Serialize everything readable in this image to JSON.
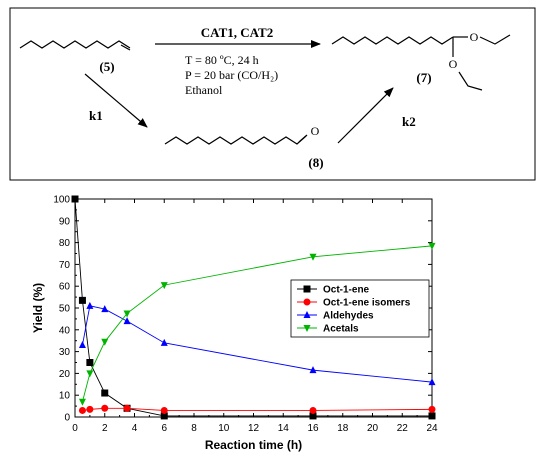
{
  "scheme": {
    "catalysts": "CAT1, CAT2",
    "conditions": [
      "T = 80 ºC, 24 h",
      "P = 20 bar (CO/H₂)",
      "Ethanol"
    ],
    "compounds": [
      {
        "id": "reactant",
        "label": "(5)"
      },
      {
        "id": "product",
        "label": "(7)"
      },
      {
        "id": "intermediate",
        "label": "(8)"
      }
    ],
    "atom_label": "O",
    "rate_constants": {
      "first": "k1",
      "second": "k2"
    }
  },
  "chart_data": {
    "type": "line",
    "title": "",
    "xlabel": "Reaction time (h)",
    "ylabel": "Yield (%)",
    "xlim": [
      0,
      24
    ],
    "ylim": [
      0,
      100
    ],
    "xticks": [
      0,
      2,
      4,
      6,
      8,
      10,
      12,
      14,
      16,
      18,
      20,
      22,
      24
    ],
    "yticks": [
      0,
      10,
      20,
      30,
      40,
      50,
      60,
      70,
      80,
      90,
      100
    ],
    "grid": false,
    "legend_position": "middle-right",
    "series": [
      {
        "name": "Oct-1-ene",
        "color": "#000000",
        "marker": "square",
        "x": [
          0,
          0.5,
          1,
          2,
          3.5,
          6,
          16,
          24
        ],
        "y": [
          100,
          53.5,
          25,
          11,
          4,
          0.5,
          0.5,
          0.5
        ]
      },
      {
        "name": "Oct-1-ene isomers",
        "color": "#ff0000",
        "marker": "circle",
        "x": [
          0.5,
          1,
          2,
          3.5,
          6,
          16,
          24
        ],
        "y": [
          3,
          3.5,
          4,
          4,
          3,
          3,
          3.5
        ]
      },
      {
        "name": "Aldehydes",
        "color": "#0000ff",
        "marker": "triangle-up",
        "x": [
          0.5,
          1,
          2,
          3.5,
          6,
          16,
          24
        ],
        "y": [
          33,
          51,
          49.5,
          44,
          34,
          21.5,
          16
        ]
      },
      {
        "name": "Acetals",
        "color": "#00b400",
        "marker": "triangle-down",
        "x": [
          0.5,
          1,
          2,
          3.5,
          6,
          16,
          24
        ],
        "y": [
          7,
          20,
          34.5,
          47.5,
          60.5,
          73.5,
          78.5
        ]
      }
    ]
  }
}
